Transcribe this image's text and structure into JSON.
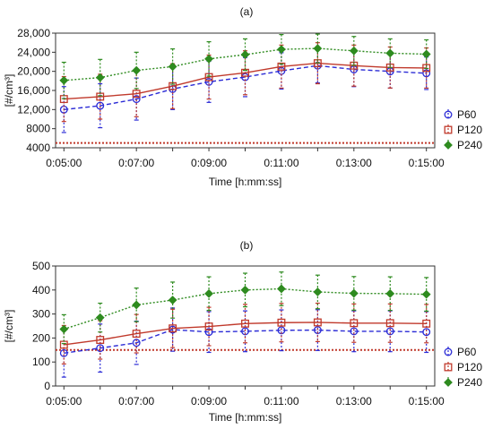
{
  "figure": {
    "labels": [
      "(a)",
      "(b)"
    ]
  },
  "chart_data": [
    {
      "type": "line",
      "panel_label": "(a)",
      "xlabel": "Time [h:mm:ss]",
      "ylabel": "[#/cm³]",
      "x": [
        "0:05:00",
        "0:06:00",
        "0:07:00",
        "0:08:00",
        "0:09:00",
        "0:10:00",
        "0:11:00",
        "0:12:00",
        "0:13:00",
        "0:14:00",
        "0:15:00"
      ],
      "x_tick_labels": [
        "0:05:00",
        "0:07:00",
        "0:09:00",
        "0:11:00",
        "0:13:00",
        "0:15:00"
      ],
      "xlim": [
        "0:05:00",
        "0:15:00"
      ],
      "ylim": [
        4000,
        28000
      ],
      "y_ticks": [
        4000,
        8000,
        12000,
        16000,
        20000,
        24000,
        28000
      ],
      "y_tick_labels": [
        "4000",
        "8000",
        "12,000",
        "16,000",
        "20,000",
        "24,000",
        "28,000"
      ],
      "reference_line": 5000,
      "grid": false,
      "legend": "right",
      "series": [
        {
          "name": "P60",
          "color": "#2b2bd6",
          "marker": "circle",
          "values": [
            12000,
            12800,
            14200,
            16300,
            17800,
            18800,
            20100,
            21200,
            20400,
            20000,
            19600
          ],
          "error": [
            4800,
            4600,
            4400,
            4300,
            4300,
            4100,
            3800,
            3600,
            3600,
            3500,
            3400
          ]
        },
        {
          "name": "P120",
          "color": "#c0392b",
          "marker": "square",
          "values": [
            14200,
            14700,
            15300,
            16900,
            18800,
            19700,
            21000,
            21700,
            21200,
            20800,
            20700
          ],
          "error": [
            4700,
            4700,
            4800,
            4700,
            4600,
            4600,
            4500,
            4300,
            4300,
            4300,
            4200
          ]
        },
        {
          "name": "P240",
          "color": "#2e8b1f",
          "marker": "diamond",
          "values": [
            18100,
            18700,
            20200,
            21000,
            22600,
            23500,
            24600,
            24800,
            24300,
            23800,
            23600
          ],
          "error": [
            3800,
            3800,
            3800,
            3700,
            3600,
            3300,
            3100,
            3000,
            3000,
            3000,
            3000
          ]
        }
      ]
    },
    {
      "type": "line",
      "panel_label": "(b)",
      "xlabel": "Time [h:mm:ss]",
      "ylabel": "[#/cm³]",
      "x": [
        "0:05:00",
        "0:06:00",
        "0:07:00",
        "0:08:00",
        "0:09:00",
        "0:10:00",
        "0:11:00",
        "0:12:00",
        "0:13:00",
        "0:14:00",
        "0:15:00"
      ],
      "x_tick_labels": [
        "0:05:00",
        "0:07:00",
        "0:09:00",
        "0:11:00",
        "0:13:00",
        "0:15:00"
      ],
      "xlim": [
        "0:05:00",
        "0:15:00"
      ],
      "ylim": [
        0,
        500
      ],
      "y_ticks": [
        0,
        100,
        200,
        300,
        400,
        500
      ],
      "y_tick_labels": [
        "0",
        "100",
        "200",
        "300",
        "400",
        "500"
      ],
      "reference_line": 150,
      "grid": false,
      "legend": "right",
      "series": [
        {
          "name": "P60",
          "color": "#2b2bd6",
          "marker": "circle",
          "values": [
            137,
            158,
            180,
            235,
            225,
            228,
            232,
            233,
            228,
            228,
            225
          ],
          "error": [
            100,
            100,
            90,
            90,
            85,
            85,
            85,
            85,
            85,
            85,
            85
          ]
        },
        {
          "name": "P120",
          "color": "#c0392b",
          "marker": "square",
          "values": [
            172,
            192,
            218,
            240,
            248,
            260,
            264,
            265,
            262,
            262,
            260
          ],
          "error": [
            80,
            80,
            80,
            80,
            80,
            80,
            80,
            80,
            80,
            80,
            80
          ]
        },
        {
          "name": "P240",
          "color": "#2e8b1f",
          "marker": "diamond",
          "values": [
            237,
            285,
            338,
            358,
            385,
            400,
            405,
            392,
            386,
            385,
            382
          ],
          "error": [
            60,
            60,
            70,
            75,
            70,
            70,
            70,
            70,
            70,
            70,
            70
          ]
        }
      ]
    }
  ]
}
